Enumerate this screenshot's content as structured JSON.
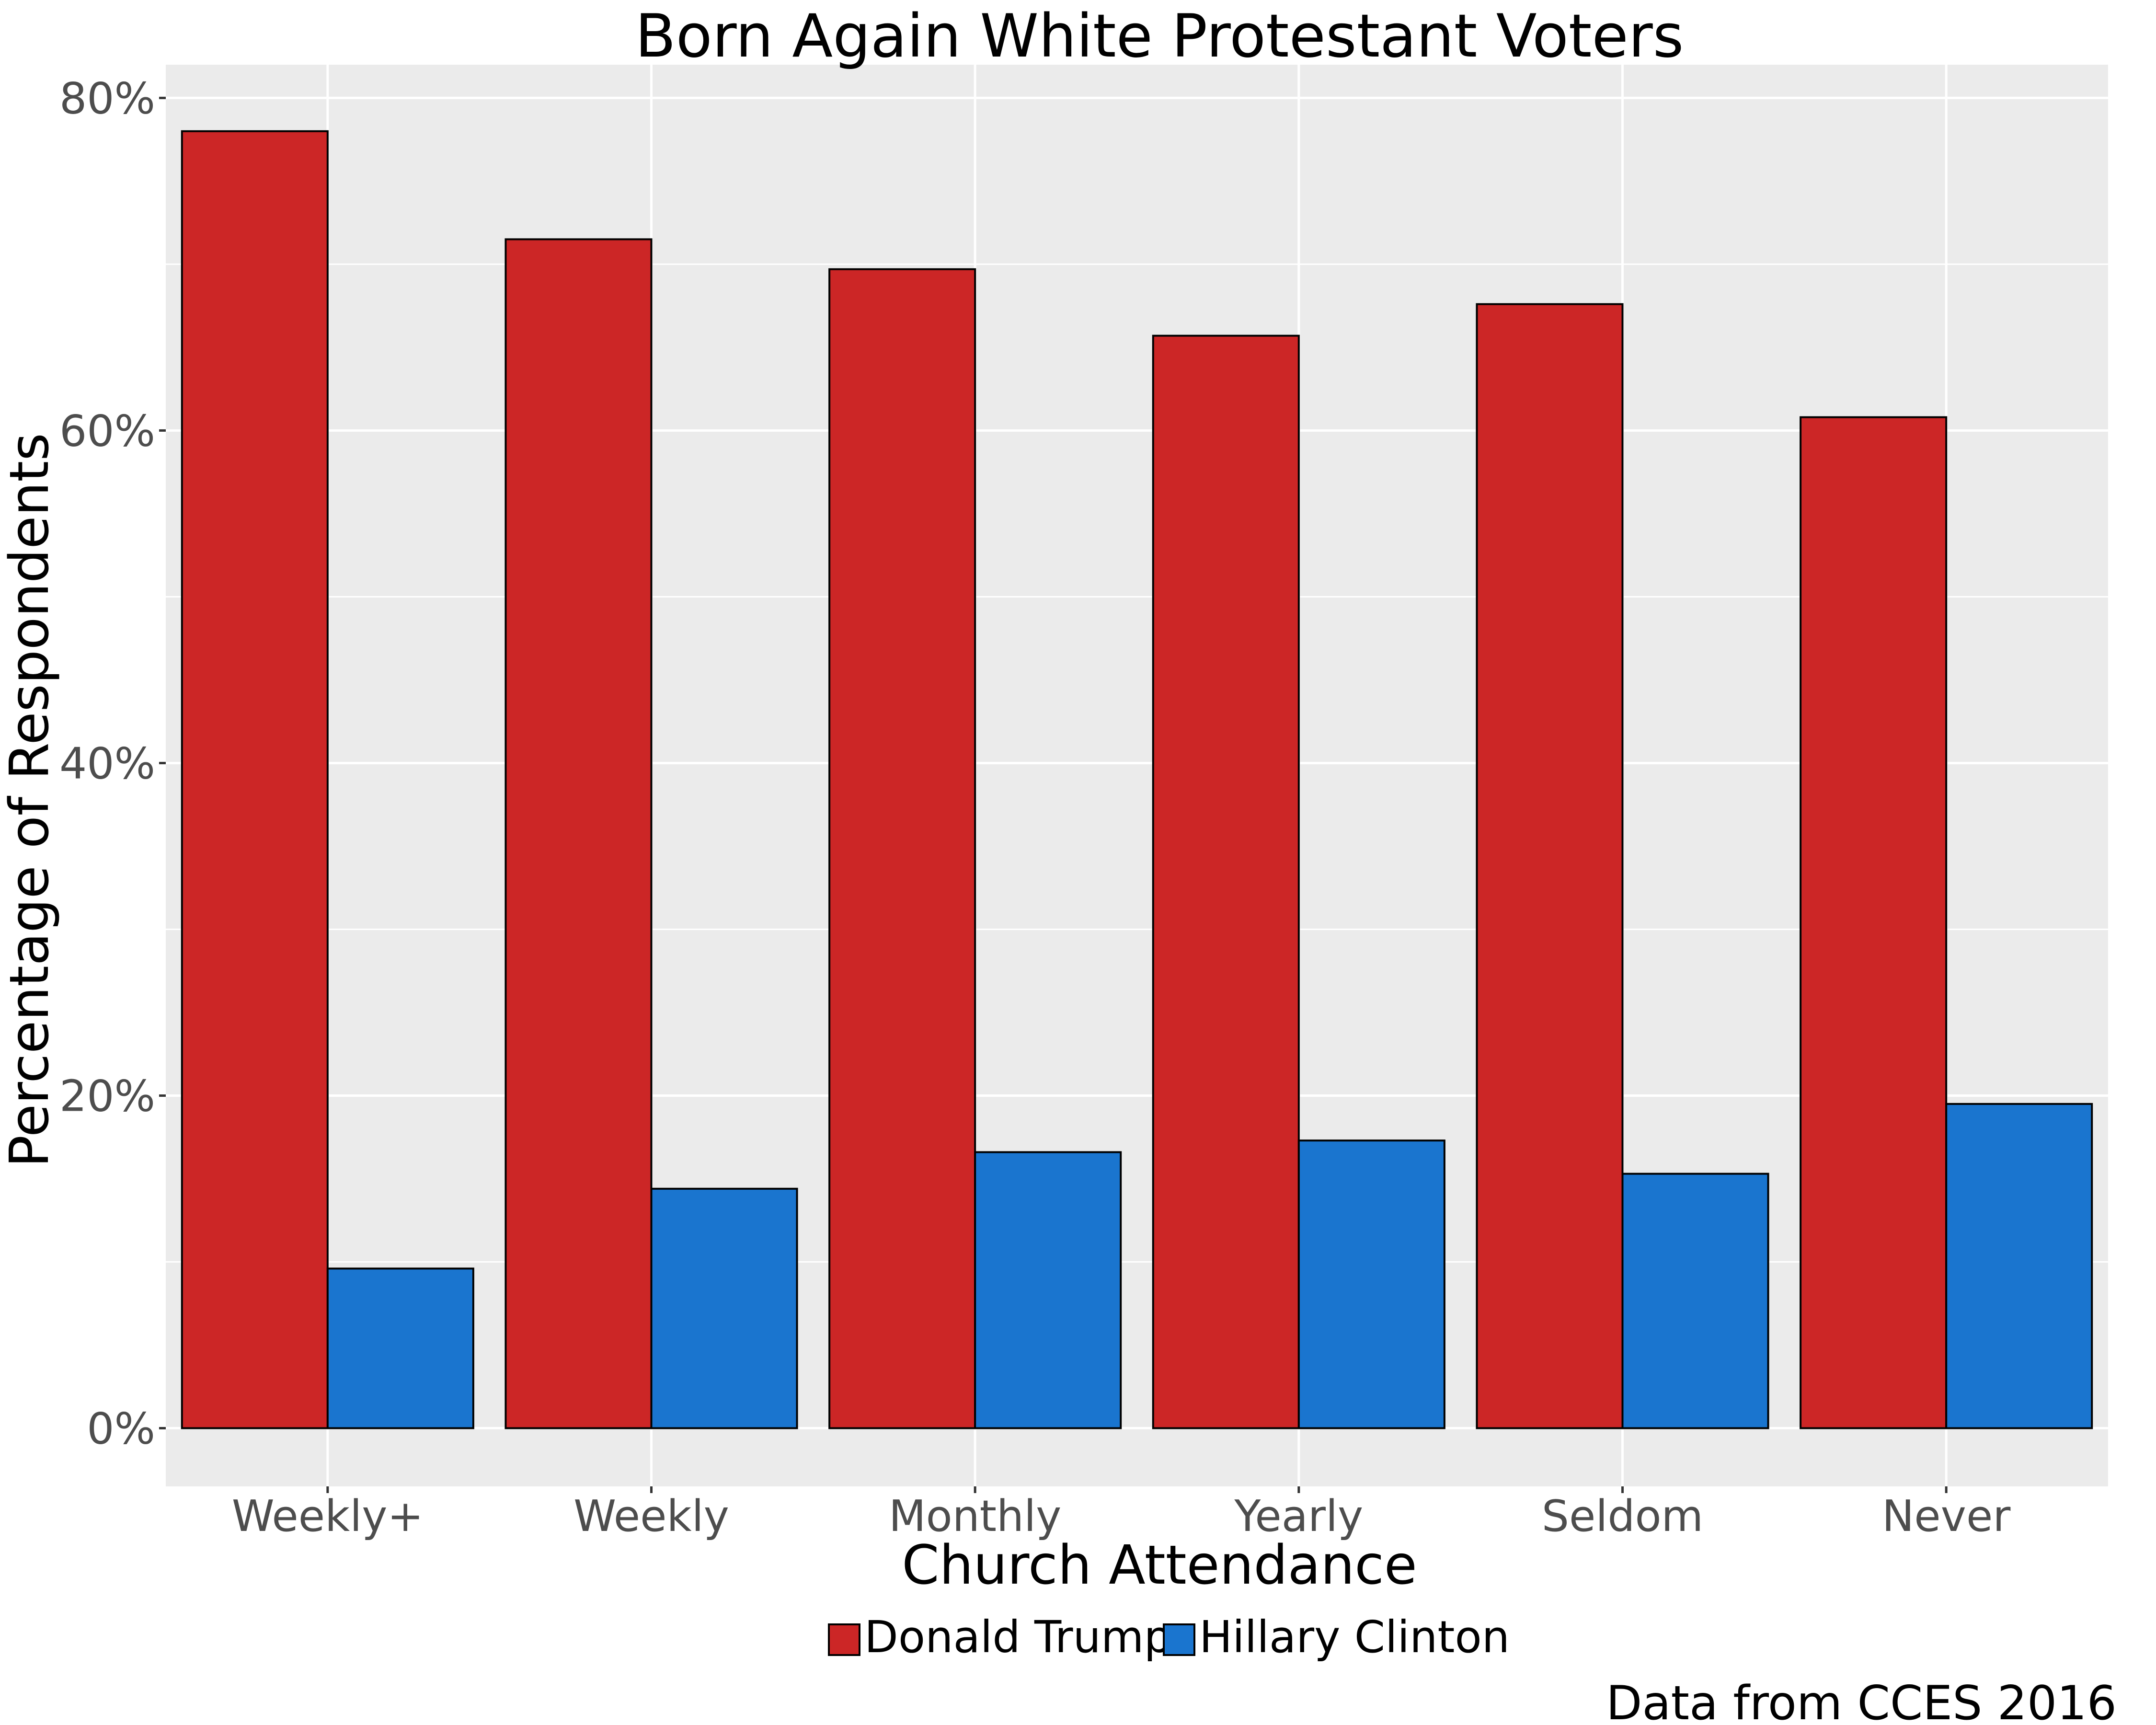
{
  "chart_data": {
    "type": "bar",
    "title": "Born Again White Protestant Voters",
    "xlabel": "Church Attendance",
    "ylabel": "Percentage of Respondents",
    "caption": "Data from CCES 2016",
    "categories": [
      "Weekly+",
      "Weekly",
      "Monthly",
      "Yearly",
      "Seldom",
      "Never"
    ],
    "series": [
      {
        "name": "Donald Trump",
        "color": "#cc2626",
        "values": [
          78,
          71.5,
          69.7,
          65.7,
          67.6,
          60.8
        ]
      },
      {
        "name": "Hillary Clinton",
        "color": "#1a75cf",
        "values": [
          9.6,
          14.4,
          16.6,
          17.3,
          15.3,
          19.5
        ]
      }
    ],
    "ylim": [
      -3.5,
      82
    ],
    "yticks": [
      0,
      20,
      40,
      60,
      80
    ],
    "ytick_labels": [
      "0%",
      "20%",
      "40%",
      "60%",
      "80%"
    ],
    "grid": true,
    "panel_background": "#ebebeb",
    "legend_position": "bottom"
  }
}
